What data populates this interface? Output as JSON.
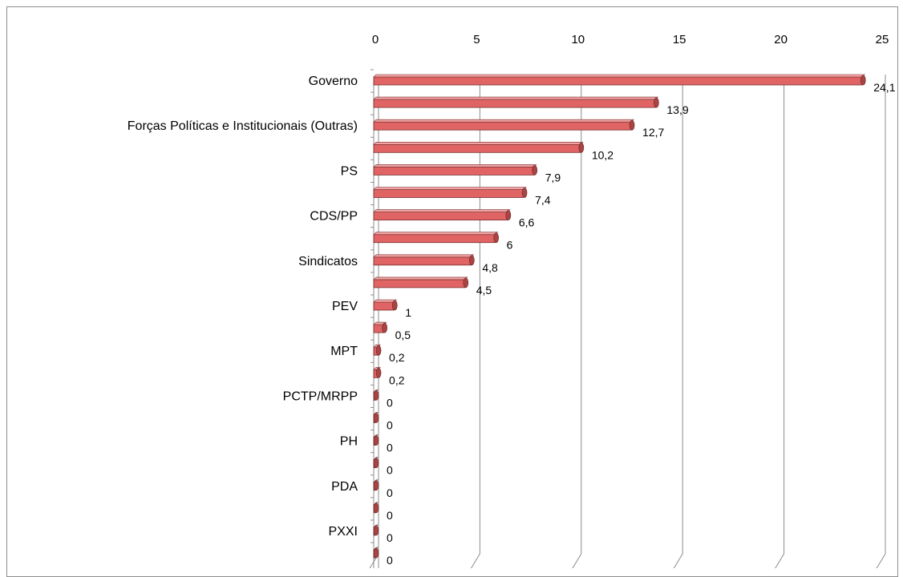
{
  "chart_data": {
    "type": "bar",
    "orientation": "horizontal",
    "title": "",
    "xlabel": "",
    "ylabel": "",
    "xlim": [
      0,
      25
    ],
    "x_ticks": [
      "0",
      "5",
      "10",
      "15",
      "20",
      "25"
    ],
    "grid": true,
    "legend": "none",
    "bar_color": "#e06464",
    "categories": [
      "Governo",
      "",
      "Forças Políticas e Institucionais (Outras)",
      "",
      "PS",
      "",
      "CDS/PP",
      "",
      "Sindicatos",
      "",
      "PEV",
      "",
      "MPT",
      "",
      "PCTP/MRPP",
      "",
      "PH",
      "",
      "PDA",
      "",
      "PXXI",
      ""
    ],
    "values": [
      24.1,
      13.9,
      12.7,
      10.2,
      7.9,
      7.4,
      6.6,
      6,
      4.8,
      4.5,
      1,
      0.5,
      0.2,
      0.2,
      0,
      0,
      0,
      0,
      0,
      0,
      0,
      0
    ],
    "value_labels": [
      "24,1",
      "13,9",
      "12,7",
      "10,2",
      "7,9",
      "7,4",
      "6,6",
      "6",
      "4,8",
      "4,5",
      "1",
      "0,5",
      "0,2",
      "0,2",
      "0",
      "0",
      "0",
      "0",
      "0",
      "0",
      "0",
      "0"
    ]
  }
}
